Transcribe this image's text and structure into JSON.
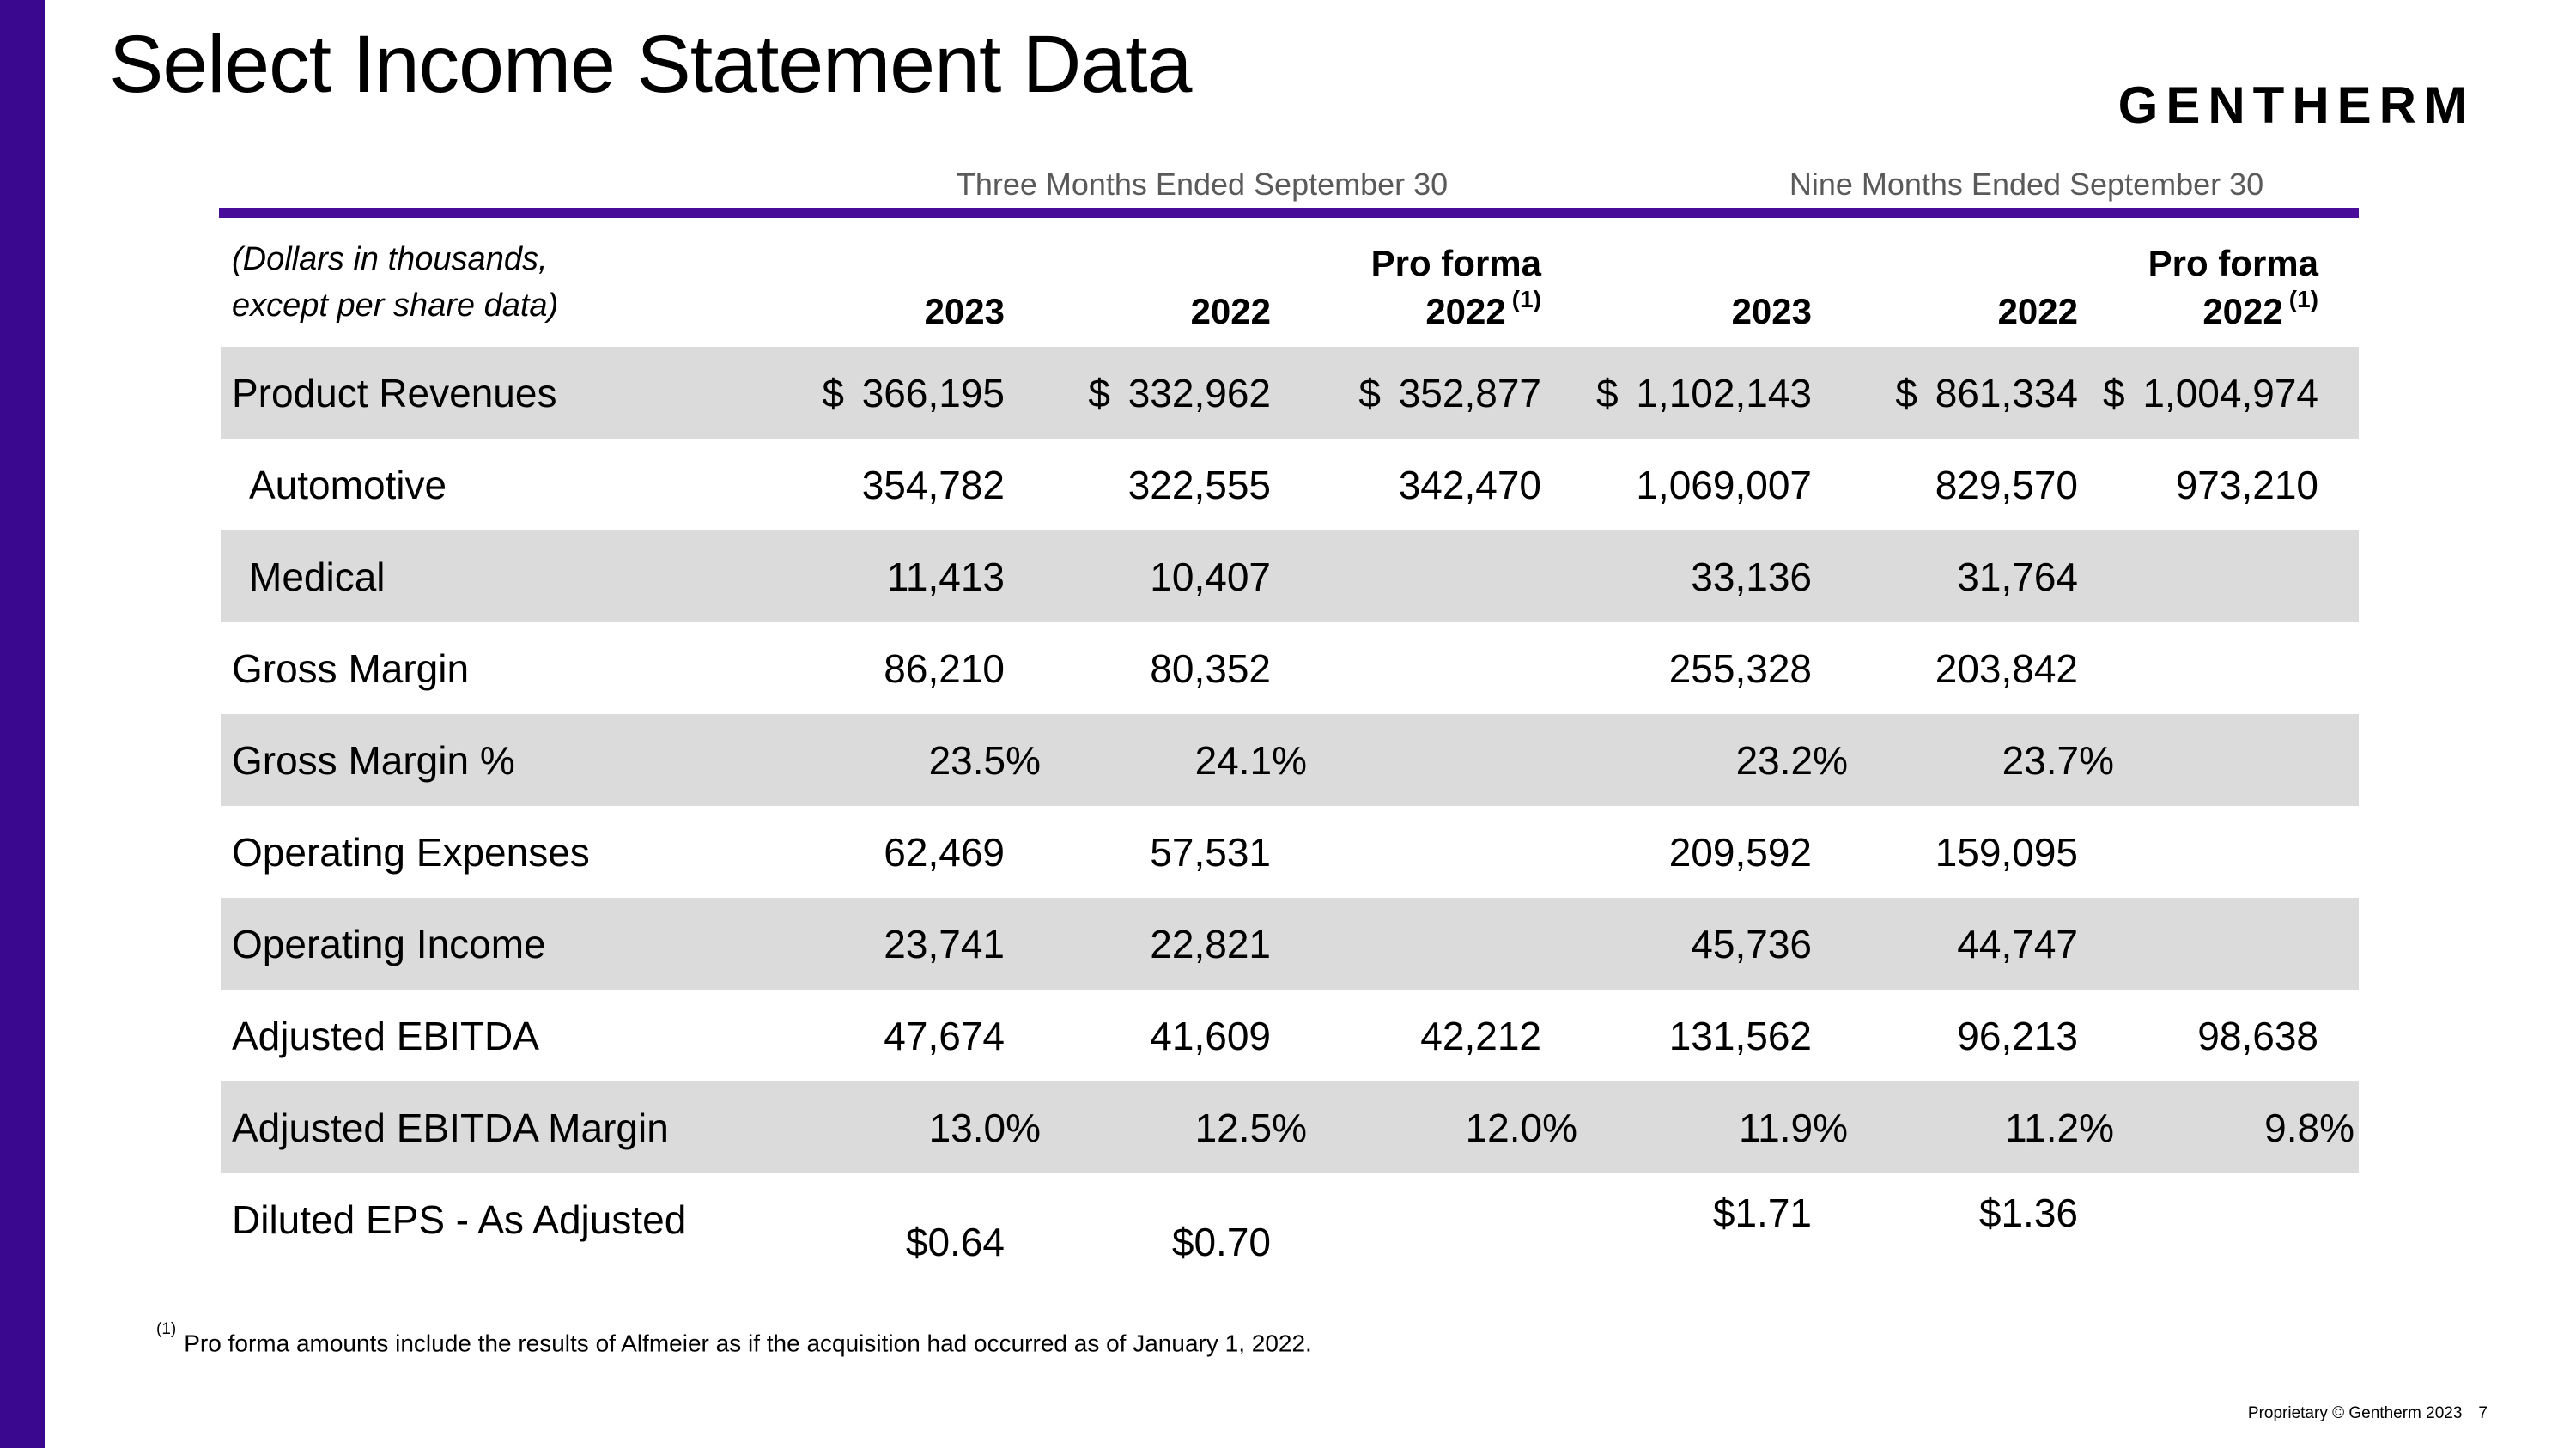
{
  "slide": {
    "title": "Select Income Statement Data",
    "logo": "GENTHERM",
    "footnote": {
      "marker": "(1)",
      "text": "Pro forma amounts include the results of Alfmeier as if the acquisition had occurred as of January 1, 2022."
    },
    "footer": {
      "proprietary": "Proprietary © Gentherm 2023",
      "page_number": "7"
    }
  },
  "table": {
    "group_headers": [
      "Three Months Ended September 30",
      "Nine Months Ended September 30"
    ],
    "units_note_line1": "(Dollars in thousands,",
    "units_note_line2": "except per share data)",
    "columns": [
      {
        "line1": "",
        "line2": "2023",
        "sup": ""
      },
      {
        "line1": "",
        "line2": "2022",
        "sup": ""
      },
      {
        "line1": "Pro forma",
        "line2": "2022",
        "sup": "(1)"
      },
      {
        "line1": "",
        "line2": "2023",
        "sup": ""
      },
      {
        "line1": "",
        "line2": "2022",
        "sup": ""
      },
      {
        "line1": "Pro forma",
        "line2": "2022",
        "sup": "(1)"
      }
    ],
    "rows": [
      {
        "label": "Product Revenues",
        "indent": false,
        "values": [
          "$ 366,195",
          "$ 332,962",
          "$ 352,877",
          "$ 1,102,143",
          "$ 861,334",
          "$ 1,004,974"
        ]
      },
      {
        "label": "Automotive",
        "indent": true,
        "values": [
          "354,782",
          "322,555",
          "342,470",
          "1,069,007",
          "829,570",
          "973,210"
        ]
      },
      {
        "label": "Medical",
        "indent": true,
        "values": [
          "11,413",
          "10,407",
          "",
          "33,136",
          "31,764",
          ""
        ]
      },
      {
        "label": "Gross Margin",
        "indent": false,
        "values": [
          "86,210",
          "80,352",
          "",
          "255,328",
          "203,842",
          ""
        ]
      },
      {
        "label": "Gross Margin %",
        "indent": false,
        "values": [
          "23.5%",
          "24.1%",
          "",
          "23.2%",
          "23.7%",
          ""
        ]
      },
      {
        "label": "Operating Expenses",
        "indent": false,
        "values": [
          "62,469",
          "57,531",
          "",
          "209,592",
          "159,095",
          ""
        ]
      },
      {
        "label": "Operating Income",
        "indent": false,
        "values": [
          "23,741",
          "22,821",
          "",
          "45,736",
          "44,747",
          ""
        ]
      },
      {
        "label": "Adjusted EBITDA",
        "indent": false,
        "values": [
          "47,674",
          "41,609",
          "42,212",
          "131,562",
          "96,213",
          "98,638"
        ]
      },
      {
        "label": "Adjusted EBITDA Margin",
        "indent": false,
        "values": [
          "13.0%",
          "12.5%",
          "12.0%",
          "11.9%",
          "11.2%",
          "9.8%"
        ]
      },
      {
        "label": "Diluted EPS - As Adjusted",
        "indent": false,
        "values": [
          "$0.64",
          "$0.70",
          "",
          "$1.71",
          "$1.36",
          ""
        ]
      }
    ]
  },
  "colors": {
    "accent_purple_bar": "#3A088E",
    "accent_purple_rule": "#4A0D99",
    "row_shade": "#DBDBDB",
    "muted_header": "#5A5A5A",
    "text": "#000000",
    "background": "#FFFFFF"
  }
}
